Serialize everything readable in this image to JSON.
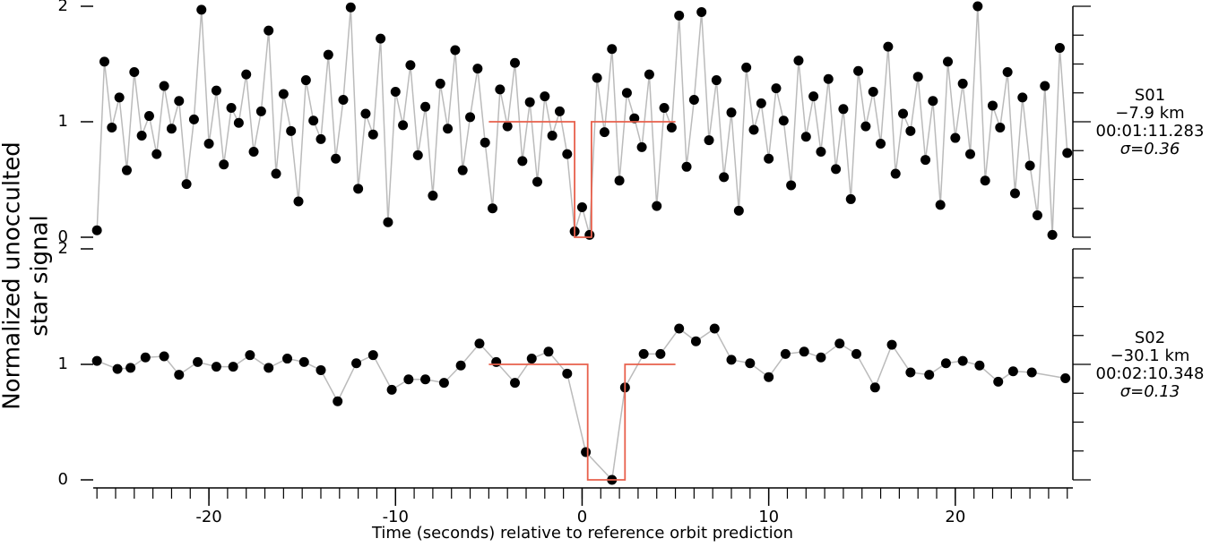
{
  "chart_data": [
    {
      "type": "line",
      "ylabel": [
        "Normalized unocculted",
        "star signal"
      ],
      "annotations": [
        "S01",
        "−7.9 km",
        "00:01:11.283",
        "σ=0.36"
      ],
      "xlim": [
        -26.2,
        26.3
      ],
      "ylim": [
        0,
        2
      ],
      "yticks": [
        0,
        1,
        2
      ],
      "yminorticks": [
        0,
        0.25,
        0.5,
        0.75,
        1,
        1.25,
        1.5,
        1.75,
        2
      ],
      "series": [
        {
          "color": "#000000",
          "line_color": "#bbbbbb",
          "x": [
            -26,
            -25.6,
            -25.2,
            -24.8,
            -24.4,
            -24,
            -23.6,
            -23.2,
            -22.8,
            -22.4,
            -22,
            -21.6,
            -21.2,
            -20.8,
            -20.4,
            -20,
            -19.6,
            -19.2,
            -18.8,
            -18.4,
            -18,
            -17.6,
            -17.2,
            -16.8,
            -16.4,
            -16,
            -15.6,
            -15.2,
            -14.8,
            -14.4,
            -14,
            -13.6,
            -13.2,
            -12.8,
            -12.4,
            -12,
            -11.6,
            -11.2,
            -10.8,
            -10.4,
            -10,
            -9.6,
            -9.2,
            -8.8,
            -8.4,
            -8,
            -7.6,
            -7.2,
            -6.8,
            -6.4,
            -6,
            -5.6,
            -5.2,
            -4.8,
            -4.4,
            -4,
            -3.6,
            -3.2,
            -2.8,
            -2.4,
            -2,
            -1.6,
            -1.2,
            -0.8,
            -0.4,
            0,
            0.4,
            0.8,
            1.2,
            1.6,
            2,
            2.4,
            2.8,
            3.2,
            3.6,
            4,
            4.4,
            4.8,
            5.2,
            5.6,
            6,
            6.4,
            6.8,
            7.2,
            7.6,
            8,
            8.4,
            8.8,
            9.2,
            9.6,
            10,
            10.4,
            10.8,
            11.2,
            11.6,
            12,
            12.4,
            12.8,
            13.2,
            13.6,
            14,
            14.4,
            14.8,
            15.2,
            15.6,
            16,
            16.4,
            16.8,
            17.2,
            17.6,
            18,
            18.4,
            18.8,
            19.2,
            19.6,
            20,
            20.4,
            20.8,
            21.2,
            21.6,
            22,
            22.4,
            22.8,
            23.2,
            23.6,
            24,
            24.4,
            24.8,
            25.2,
            25.6,
            26
          ],
          "values": [
            0.06,
            1.52,
            0.95,
            1.21,
            0.58,
            1.43,
            0.88,
            1.05,
            0.72,
            1.31,
            0.94,
            1.18,
            0.46,
            1.02,
            1.97,
            0.81,
            1.27,
            0.63,
            1.12,
            0.99,
            1.41,
            0.74,
            1.09,
            1.79,
            0.55,
            1.24,
            0.92,
            0.31,
            1.36,
            1.01,
            0.85,
            1.58,
            0.68,
            1.19,
            1.99,
            0.42,
            1.07,
            0.89,
            1.72,
            0.13,
            1.26,
            0.97,
            1.49,
            0.71,
            1.13,
            0.36,
            1.33,
            0.94,
            1.62,
            0.58,
            1.04,
            1.46,
            0.82,
            0.25,
            1.28,
            0.96,
            1.51,
            0.66,
            1.17,
            0.48,
            1.22,
            0.88,
            1.09,
            0.72,
            0.05,
            0.26,
            0.02,
            1.38,
            0.91,
            1.63,
            0.49,
            1.25,
            1.03,
            0.78,
            1.41,
            0.27,
            1.12,
            0.95,
            1.92,
            0.61,
            1.19,
            1.95,
            0.84,
            1.36,
            0.52,
            1.08,
            0.23,
            1.47,
            0.93,
            1.16,
            0.68,
            1.29,
            1.01,
            0.45,
            1.53,
            0.87,
            1.22,
            0.74,
            1.37,
            0.59,
            1.11,
            0.33,
            1.44,
            0.96,
            1.26,
            0.81,
            1.65,
            0.55,
            1.07,
            0.92,
            1.39,
            0.67,
            1.18,
            0.28,
            1.52,
            0.86,
            1.33,
            0.72,
            2.0,
            0.49,
            1.14,
            0.95,
            1.43,
            0.38,
            1.21,
            0.62,
            0.19,
            1.31,
            0.02,
            1.64,
            0.73
          ]
        },
        {
          "color": "#e8604c",
          "x": [
            -5,
            -0.4,
            -0.4,
            0.5,
            0.5,
            5
          ],
          "values": [
            1,
            1,
            0,
            0,
            1,
            1
          ]
        }
      ]
    },
    {
      "type": "line",
      "xlabel": "Time (seconds) relative to reference orbit prediction",
      "annotations": [
        "S02",
        "−30.1 km",
        "00:02:10.348",
        "σ=0.13"
      ],
      "xlim": [
        -26.2,
        26.3
      ],
      "ylim": [
        0,
        2
      ],
      "yticks": [
        0,
        1,
        2
      ],
      "yminorticks": [
        0,
        0.25,
        0.5,
        0.75,
        1,
        1.25,
        1.5,
        1.75,
        2
      ],
      "xticks": [
        -20,
        -10,
        0,
        10,
        20
      ],
      "xminorticks": [
        -26,
        -25,
        -24,
        -23,
        -22,
        -21,
        -20,
        -19,
        -18,
        -17,
        -16,
        -15,
        -14,
        -13,
        -12,
        -11,
        -10,
        -9,
        -8,
        -7,
        -6,
        -5,
        -4,
        -3,
        -2,
        -1,
        0,
        1,
        2,
        3,
        4,
        5,
        6,
        7,
        8,
        9,
        10,
        11,
        12,
        13,
        14,
        15,
        16,
        17,
        18,
        19,
        20,
        21,
        22,
        23,
        24,
        25,
        26
      ],
      "series": [
        {
          "color": "#000000",
          "line_color": "#bbbbbb",
          "x": [
            -26,
            -24.9,
            -24.2,
            -23.4,
            -22.4,
            -21.6,
            -20.6,
            -19.6,
            -18.7,
            -17.8,
            -16.8,
            -15.8,
            -14.9,
            -14.0,
            -13.1,
            -12.1,
            -11.2,
            -10.2,
            -9.3,
            -8.4,
            -7.4,
            -6.5,
            -5.5,
            -4.6,
            -3.6,
            -2.7,
            -1.8,
            -0.8,
            0.2,
            1.6,
            2.3,
            3.3,
            4.2,
            5.2,
            6.1,
            7.1,
            8.0,
            9.0,
            10.0,
            10.9,
            11.9,
            12.8,
            13.8,
            14.7,
            15.7,
            16.6,
            17.6,
            18.6,
            19.5,
            20.4,
            21.3,
            22.3,
            23.1,
            24.1,
            25.9
          ],
          "values": [
            1.03,
            0.96,
            0.97,
            1.06,
            1.07,
            0.91,
            1.02,
            0.98,
            0.98,
            1.08,
            0.97,
            1.05,
            1.02,
            0.95,
            0.68,
            1.01,
            1.08,
            0.78,
            0.87,
            0.87,
            0.84,
            0.99,
            1.18,
            1.02,
            0.84,
            1.05,
            1.11,
            0.92,
            0.24,
            0.0,
            0.8,
            1.09,
            1.09,
            1.31,
            1.2,
            1.31,
            1.04,
            1.01,
            0.89,
            1.09,
            1.11,
            1.06,
            1.18,
            1.09,
            0.8,
            1.17,
            0.93,
            0.91,
            1.01,
            1.03,
            0.99,
            0.85,
            0.94,
            0.93,
            0.88
          ]
        },
        {
          "color": "#e8604c",
          "x": [
            -5,
            0.3,
            0.3,
            2.3,
            2.3,
            5
          ],
          "values": [
            1,
            1,
            0,
            0,
            1,
            1
          ]
        }
      ]
    }
  ]
}
